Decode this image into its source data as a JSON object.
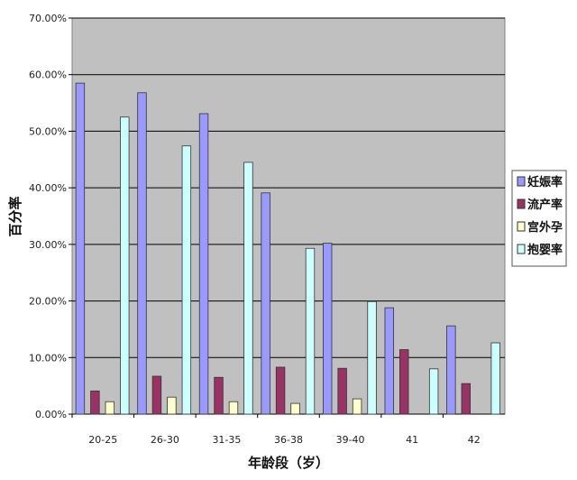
{
  "chart_data": {
    "type": "bar",
    "title": "",
    "xlabel": "年龄段（岁）",
    "ylabel": "百分率",
    "ylim": [
      0,
      70
    ],
    "yticks": [
      "0.00%",
      "10.00%",
      "20.00%",
      "30.00%",
      "40.00%",
      "50.00%",
      "60.00%",
      "70.00%"
    ],
    "grid": true,
    "legend_position": "right",
    "categories": [
      "20-25",
      "26-30",
      "31-35",
      "36-38",
      "39-40",
      "41",
      "42"
    ],
    "series": [
      {
        "name": "妊娠率",
        "color": "#9999ff",
        "values": [
          58.5,
          56.8,
          53.1,
          39.1,
          30.2,
          18.8,
          15.6
        ]
      },
      {
        "name": "流产率",
        "color": "#993366",
        "values": [
          4.1,
          6.7,
          6.5,
          8.3,
          8.1,
          11.4,
          5.4
        ]
      },
      {
        "name": "宫外孕",
        "color": "#ffffcc",
        "values": [
          2.2,
          3.0,
          2.2,
          1.9,
          2.7,
          0,
          0
        ]
      },
      {
        "name": "抱婴率",
        "color": "#ccffff",
        "values": [
          52.5,
          47.4,
          44.5,
          29.3,
          19.9,
          8.0,
          12.6
        ]
      }
    ],
    "plot_background": "#c0c0c0"
  }
}
